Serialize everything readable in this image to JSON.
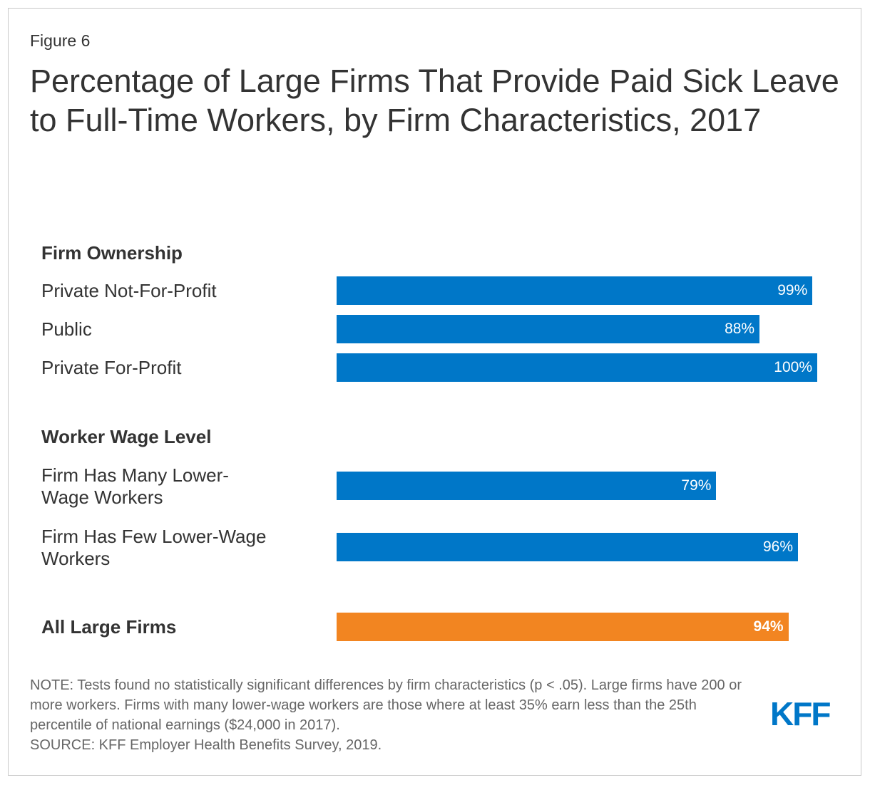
{
  "figure_label": "Figure 6",
  "title": "Percentage of Large Firms That Provide Paid Sick Leave to Full-Time Workers, by Firm Characteristics, 2017",
  "chart_data": {
    "type": "bar",
    "orientation": "horizontal",
    "title": "Percentage of Large Firms That Provide Paid Sick Leave to Full-Time Workers, by Firm Characteristics, 2017",
    "xlim": [
      0,
      100
    ],
    "grid": false,
    "groups": [
      {
        "heading": "Firm Ownership",
        "bars": [
          {
            "label": "Private Not-For-Profit",
            "value": 99,
            "value_label": "99%"
          },
          {
            "label": "Public",
            "value": 88,
            "value_label": "88%"
          },
          {
            "label": "Private For-Profit",
            "value": 100,
            "value_label": "100%"
          }
        ]
      },
      {
        "heading": "Worker Wage Level",
        "bars": [
          {
            "label": "Firm Has Many Lower-Wage Workers",
            "value": 79,
            "value_label": "79%"
          },
          {
            "label": "Firm Has Few Lower-Wage Workers",
            "value": 96,
            "value_label": "96%"
          }
        ]
      }
    ],
    "total": {
      "label": "All Large Firms",
      "value": 94,
      "value_label": "94%"
    },
    "colors": {
      "bar": "#0077c8",
      "total": "#f28521"
    }
  },
  "note": "NOTE: Tests found no statistically significant differences by firm characteristics (p < .05). Large firms have 200 or more workers. Firms with many lower-wage workers are those where at least 35% earn less than the 25th percentile of national earnings ($24,000 in 2017).",
  "source": "SOURCE: KFF Employer Health Benefits Survey, 2019.",
  "logo": {
    "text": "KFF",
    "color": "#0077c8"
  }
}
